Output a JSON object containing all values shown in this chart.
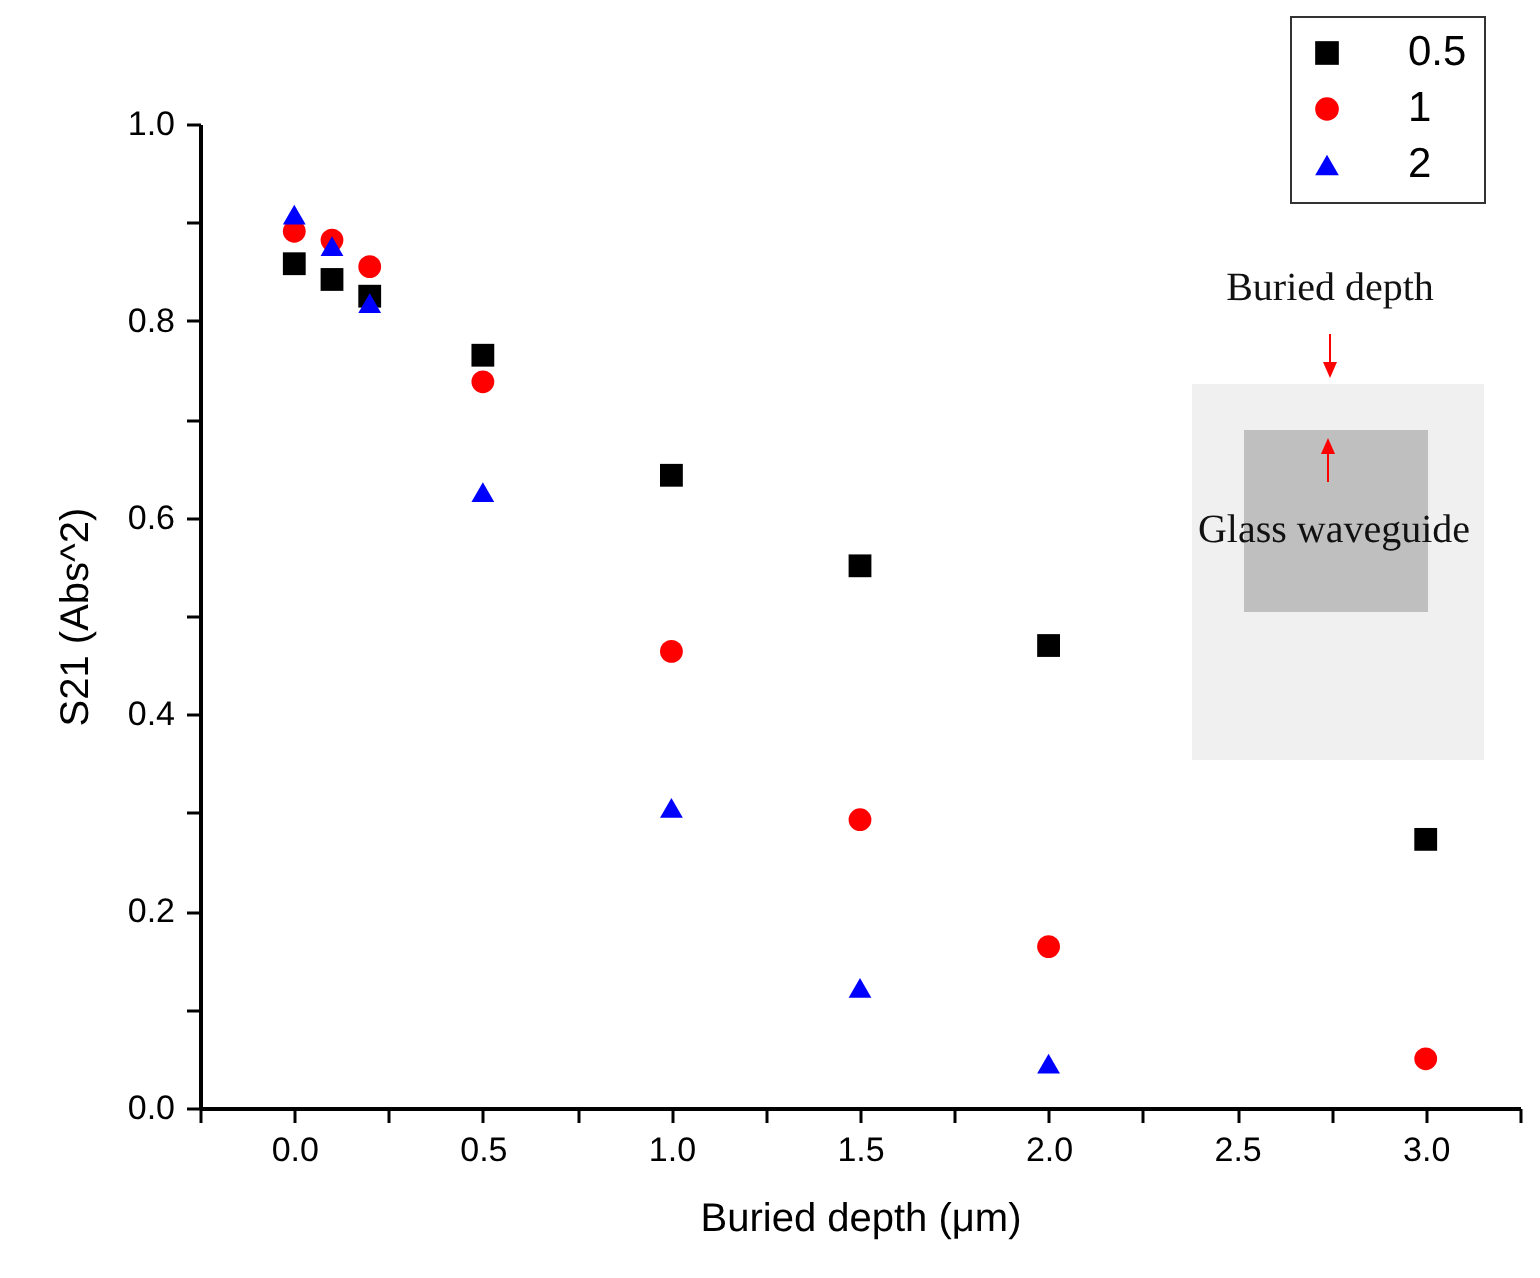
{
  "chart_data": {
    "type": "scatter",
    "xlabel": "Buried depth (μm)",
    "ylabel": "S21 (Abs^2)",
    "xlim": [
      -0.25,
      3.25
    ],
    "ylim": [
      0,
      1
    ],
    "xticks": [
      {
        "value": -0.25,
        "label": null
      },
      {
        "value": 0,
        "label": "0.0"
      },
      {
        "value": 0.25,
        "label": null
      },
      0.5,
      {
        "value": 0.75,
        "label": null
      },
      {
        "value": 1,
        "label": "1.0"
      },
      {
        "value": 1.25,
        "label": null
      },
      1.5,
      {
        "value": 1.75,
        "label": null
      },
      {
        "value": 2,
        "label": "2.0"
      },
      {
        "value": 2.25,
        "label": null
      },
      2.5,
      {
        "value": 2.75,
        "label": null
      },
      {
        "value": 3,
        "label": "3.0"
      },
      {
        "value": 3.25,
        "label": null
      }
    ],
    "yticks": [
      {
        "value": 0,
        "label": "0.0"
      },
      {
        "value": 0.1,
        "label": null
      },
      {
        "value": 0.2,
        "label": "0.2"
      },
      {
        "value": 0.3,
        "label": null
      },
      {
        "value": 0.4,
        "label": "0.4"
      },
      {
        "value": 0.5,
        "label": null
      },
      {
        "value": 0.6,
        "label": "0.6"
      },
      {
        "value": 0.7,
        "label": null
      },
      {
        "value": 0.8,
        "label": "0.8"
      },
      {
        "value": 0.9,
        "label": null
      },
      {
        "value": 1,
        "label": "1.0"
      }
    ],
    "grid": false,
    "legend": "top right",
    "annotations": [
      "Buried depth",
      "Glass waveguide"
    ],
    "series": [
      {
        "name": "0.5",
        "color": "#000000",
        "marker": "square",
        "x": [
          0,
          0.1,
          0.2,
          0.5,
          1,
          1.5,
          2,
          3
        ],
        "values": [
          0.858,
          0.842,
          0.825,
          0.765,
          0.643,
          0.551,
          0.47,
          0.273
        ]
      },
      {
        "name": "1",
        "color": "#ff0000",
        "marker": "circle",
        "x": [
          0,
          0.1,
          0.2,
          0.5,
          1,
          1.5,
          2,
          3
        ],
        "values": [
          0.891,
          0.882,
          0.855,
          0.738,
          0.464,
          0.293,
          0.164,
          0.05
        ]
      },
      {
        "name": "2",
        "color": "#0000ff",
        "marker": "triangle",
        "x": [
          0,
          0.1,
          0.2,
          0.5,
          1,
          1.5,
          2
        ],
        "values": [
          0.908,
          0.876,
          0.818,
          0.626,
          0.305,
          0.122,
          0.045
        ]
      }
    ]
  }
}
